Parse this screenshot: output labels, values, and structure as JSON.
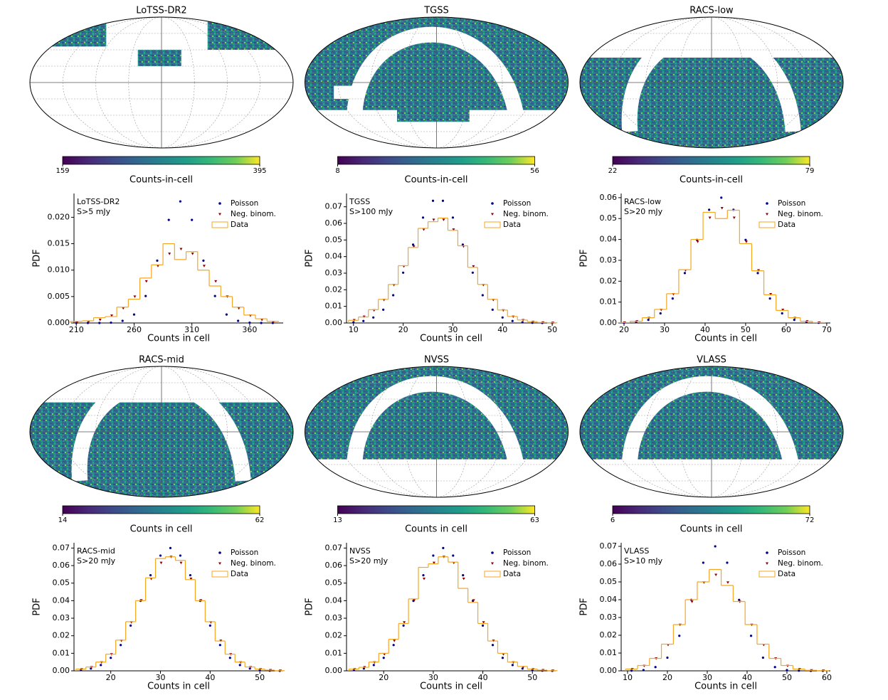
{
  "chart_data": [
    {
      "type": "map",
      "title": "LoTSS-DR2",
      "colorbar_label": "Counts-in-cell",
      "clim": [
        159,
        395
      ],
      "cticks": [
        159,
        395
      ]
    },
    {
      "type": "map",
      "title": "TGSS",
      "colorbar_label": "Counts-in-cell",
      "clim": [
        8,
        56
      ],
      "cticks": [
        8,
        56
      ]
    },
    {
      "type": "map",
      "title": "RACS-low",
      "colorbar_label": "Counts-in-cell",
      "clim": [
        22,
        79
      ],
      "cticks": [
        22,
        79
      ]
    },
    {
      "type": "pdf",
      "annotation": [
        "LoTSS-DR2",
        "S>5 mJy"
      ],
      "xlabel": "Counts in cell",
      "ylabel": "PDF",
      "x": [
        210,
        220,
        230,
        240,
        250,
        260,
        270,
        280,
        290,
        300,
        310,
        320,
        330,
        340,
        350,
        360,
        370,
        380
      ],
      "series": [
        {
          "name": "Poisson",
          "color": "#00008b",
          "values": [
            0,
            0,
            0,
            6e-05,
            0.0004,
            0.0016,
            0.0051,
            0.0118,
            0.0195,
            0.023,
            0.0195,
            0.0118,
            0.0051,
            0.0016,
            0.0004,
            6e-05,
            0,
            0
          ]
        },
        {
          "name": "Neg. binom.",
          "color": "#8b0000",
          "values": [
            8e-05,
            0.0002,
            0.0006,
            0.0014,
            0.0028,
            0.005,
            0.0079,
            0.0108,
            0.0131,
            0.014,
            0.0131,
            0.0108,
            0.0079,
            0.005,
            0.0028,
            0.0014,
            0.0006,
            0.0002
          ]
        },
        {
          "name": "Data",
          "color": "#f5a623",
          "values": [
            0.0003,
            0.0004,
            0.001,
            0.0012,
            0.003,
            0.0045,
            0.0085,
            0.011,
            0.015,
            0.012,
            0.0135,
            0.01,
            0.007,
            0.005,
            0.003,
            0.0015,
            0.0008,
            0.0003
          ]
        }
      ],
      "xlim": [
        208,
        389
      ],
      "ylim": [
        0,
        0.0245
      ],
      "xticks": [
        210,
        260,
        310,
        360
      ],
      "yticks": [
        {
          "value": 0,
          "label": "0.000"
        },
        {
          "value": 0.005,
          "label": "0.005"
        },
        {
          "value": 0.01,
          "label": "0.010"
        },
        {
          "value": 0.015,
          "label": "0.015"
        },
        {
          "value": 0.02,
          "label": "0.020"
        }
      ]
    },
    {
      "type": "pdf",
      "annotation": [
        "TGSS",
        "S>100 mJy"
      ],
      "xlabel": "Counts in cell",
      "ylabel": "PDF",
      "x": [
        10,
        12,
        14,
        16,
        18,
        20,
        22,
        24,
        26,
        28,
        30,
        32,
        34,
        36,
        38,
        40,
        42,
        44,
        46,
        48,
        50
      ],
      "series": [
        {
          "name": "Poisson",
          "color": "#00008b",
          "values": [
            0.0004,
            0.0012,
            0.0033,
            0.008,
            0.0167,
            0.0303,
            0.0472,
            0.0635,
            0.0736,
            0.0736,
            0.0635,
            0.0472,
            0.0303,
            0.0167,
            0.008,
            0.0033,
            0.0012,
            0.0004,
            0.0001,
            0,
            0
          ]
        },
        {
          "name": "Neg. binom.",
          "color": "#8b0000",
          "values": [
            0.0017,
            0.0038,
            0.0076,
            0.0139,
            0.0229,
            0.0341,
            0.0461,
            0.0563,
            0.0622,
            0.0622,
            0.0563,
            0.0461,
            0.0341,
            0.0229,
            0.0139,
            0.0076,
            0.0038,
            0.0017,
            0.0007,
            0.0003,
            0.0001
          ]
        },
        {
          "name": "Data",
          "color": "#f5a623",
          "values": [
            0.0016,
            0.0036,
            0.008,
            0.0142,
            0.0232,
            0.0345,
            0.0455,
            0.057,
            0.061,
            0.0632,
            0.0558,
            0.0465,
            0.0335,
            0.0232,
            0.0142,
            0.0078,
            0.0039,
            0.0018,
            0.0008,
            0.0003,
            0.0001
          ]
        }
      ],
      "xlim": [
        8.6,
        50.7
      ],
      "ylim": [
        0,
        0.078
      ],
      "xticks": [
        10,
        20,
        30,
        40,
        50
      ],
      "yticks": [
        {
          "value": 0,
          "label": "0.00"
        },
        {
          "value": 0.01,
          "label": "0.01"
        },
        {
          "value": 0.02,
          "label": "0.02"
        },
        {
          "value": 0.03,
          "label": "0.03"
        },
        {
          "value": 0.04,
          "label": "0.04"
        },
        {
          "value": 0.05,
          "label": "0.05"
        },
        {
          "value": 0.06,
          "label": "0.06"
        },
        {
          "value": 0.07,
          "label": "0.07"
        }
      ]
    },
    {
      "type": "pdf",
      "annotation": [
        "RACS-low",
        "S>20 mJy"
      ],
      "xlabel": "Counts in cell",
      "ylabel": "PDF",
      "x": [
        20,
        23,
        26,
        29,
        32,
        35,
        38,
        41,
        44,
        47,
        50,
        53,
        56,
        59,
        62,
        65,
        68
      ],
      "series": [
        {
          "name": "Poisson",
          "color": "#00008b",
          "values": [
            0.0001,
            0.0004,
            0.0015,
            0.0046,
            0.0117,
            0.0239,
            0.0398,
            0.0542,
            0.06,
            0.0542,
            0.0398,
            0.0239,
            0.0117,
            0.0046,
            0.0015,
            0.0004,
            0.0001
          ]
        },
        {
          "name": "Neg. binom.",
          "color": "#8b0000",
          "values": [
            0.0002,
            0.0008,
            0.0024,
            0.0063,
            0.0138,
            0.0252,
            0.0389,
            0.0504,
            0.055,
            0.0504,
            0.0389,
            0.0252,
            0.0138,
            0.0063,
            0.0024,
            0.0008,
            0.0002
          ]
        },
        {
          "name": "Data",
          "color": "#f5a623",
          "values": [
            0.0002,
            0.0008,
            0.0025,
            0.0065,
            0.014,
            0.0255,
            0.04,
            0.053,
            0.05,
            0.054,
            0.038,
            0.025,
            0.0135,
            0.006,
            0.0025,
            0.0008,
            0.0002
          ]
        }
      ],
      "xlim": [
        19.3,
        70.9
      ],
      "ylim": [
        0,
        0.062
      ],
      "xticks": [
        20,
        30,
        40,
        50,
        60,
        70
      ],
      "yticks": [
        {
          "value": 0,
          "label": "0.00"
        },
        {
          "value": 0.01,
          "label": "0.01"
        },
        {
          "value": 0.02,
          "label": "0.02"
        },
        {
          "value": 0.03,
          "label": "0.03"
        },
        {
          "value": 0.04,
          "label": "0.04"
        },
        {
          "value": 0.05,
          "label": "0.05"
        },
        {
          "value": 0.06,
          "label": "0.06"
        }
      ]
    },
    {
      "type": "map",
      "title": "RACS-mid",
      "colorbar_label": "Counts in cell",
      "clim": [
        14,
        62
      ],
      "cticks": [
        14,
        62
      ]
    },
    {
      "type": "map",
      "title": "NVSS",
      "colorbar_label": "Counts in cell",
      "clim": [
        13,
        63
      ],
      "cticks": [
        13,
        63
      ]
    },
    {
      "type": "map",
      "title": "VLASS",
      "colorbar_label": "Counts in cell",
      "clim": [
        6,
        72
      ],
      "cticks": [
        6,
        72
      ]
    },
    {
      "type": "pdf",
      "annotation": [
        "RACS-mid",
        "S>20 mJy"
      ],
      "xlabel": "Counts in cell",
      "ylabel": "PDF",
      "x": [
        14,
        16,
        18,
        20,
        22,
        24,
        26,
        28,
        30,
        32,
        34,
        36,
        38,
        40,
        42,
        44,
        46,
        48,
        50,
        52,
        54
      ],
      "series": [
        {
          "name": "Poisson",
          "color": "#00008b",
          "values": [
            0.0004,
            0.0013,
            0.0033,
            0.0074,
            0.0147,
            0.0258,
            0.0399,
            0.0545,
            0.0657,
            0.07,
            0.0657,
            0.0545,
            0.0399,
            0.0258,
            0.0147,
            0.0074,
            0.0033,
            0.0013,
            0.0004,
            0.0001,
            0
          ]
        },
        {
          "name": "Neg. binom.",
          "color": "#8b0000",
          "values": [
            0.0009,
            0.0021,
            0.0048,
            0.0095,
            0.0172,
            0.0277,
            0.0402,
            0.0525,
            0.0616,
            0.065,
            0.0616,
            0.0525,
            0.0402,
            0.0277,
            0.0172,
            0.0095,
            0.0048,
            0.0021,
            0.0009,
            0.0004,
            0.0001
          ]
        },
        {
          "name": "Data",
          "color": "#f5a623",
          "values": [
            0.001,
            0.0022,
            0.005,
            0.0095,
            0.0175,
            0.028,
            0.04,
            0.053,
            0.064,
            0.065,
            0.063,
            0.052,
            0.04,
            0.028,
            0.017,
            0.0095,
            0.005,
            0.0022,
            0.001,
            0.0004,
            0.0001
          ]
        }
      ],
      "xlim": [
        12.6,
        54.7
      ],
      "ylim": [
        0,
        0.073
      ],
      "xticks": [
        20,
        30,
        40,
        50
      ],
      "yticks": [
        {
          "value": 0,
          "label": "0.00"
        },
        {
          "value": 0.01,
          "label": "0.01"
        },
        {
          "value": 0.02,
          "label": "0.02"
        },
        {
          "value": 0.03,
          "label": "0.03"
        },
        {
          "value": 0.04,
          "label": "0.04"
        },
        {
          "value": 0.05,
          "label": "0.05"
        },
        {
          "value": 0.06,
          "label": "0.06"
        },
        {
          "value": 0.07,
          "label": "0.07"
        }
      ]
    },
    {
      "type": "pdf",
      "annotation": [
        "NVSS",
        "S>20 mJy"
      ],
      "xlabel": "Counts in cell",
      "ylabel": "PDF",
      "x": [
        14,
        16,
        18,
        20,
        22,
        24,
        26,
        28,
        30,
        32,
        34,
        36,
        38,
        40,
        42,
        44,
        46,
        48,
        50,
        52,
        54
      ],
      "series": [
        {
          "name": "Poisson",
          "color": "#00008b",
          "values": [
            0.0004,
            0.0013,
            0.0033,
            0.0074,
            0.0147,
            0.0258,
            0.0399,
            0.0545,
            0.0657,
            0.07,
            0.0657,
            0.0545,
            0.0399,
            0.0258,
            0.0147,
            0.0074,
            0.0033,
            0.0013,
            0.0004,
            0.0001,
            0
          ]
        },
        {
          "name": "Neg. binom.",
          "color": "#8b0000",
          "values": [
            0.0009,
            0.0021,
            0.0048,
            0.0095,
            0.0172,
            0.0277,
            0.0402,
            0.0525,
            0.0616,
            0.065,
            0.0616,
            0.0525,
            0.0402,
            0.0277,
            0.0172,
            0.0095,
            0.0048,
            0.0021,
            0.0009,
            0.0004,
            0.0001
          ]
        },
        {
          "name": "Data",
          "color": "#f5a623",
          "values": [
            0.001,
            0.002,
            0.005,
            0.01,
            0.018,
            0.027,
            0.041,
            0.059,
            0.061,
            0.065,
            0.062,
            0.047,
            0.039,
            0.027,
            0.017,
            0.01,
            0.005,
            0.0025,
            0.001,
            0.0004,
            0.0001
          ]
        }
      ],
      "xlim": [
        12.5,
        54.7
      ],
      "ylim": [
        0,
        0.073
      ],
      "xticks": [
        20,
        30,
        40,
        50
      ],
      "yticks": [
        {
          "value": 0,
          "label": "0.00"
        },
        {
          "value": 0.01,
          "label": "0.01"
        },
        {
          "value": 0.02,
          "label": "0.02"
        },
        {
          "value": 0.03,
          "label": "0.03"
        },
        {
          "value": 0.04,
          "label": "0.04"
        },
        {
          "value": 0.05,
          "label": "0.05"
        },
        {
          "value": 0.06,
          "label": "0.06"
        },
        {
          "value": 0.07,
          "label": "0.07"
        }
      ]
    },
    {
      "type": "pdf",
      "annotation": [
        "VLASS",
        "S>10 mJy"
      ],
      "xlabel": "Counts in cell",
      "ylabel": "PDF",
      "x": [
        11,
        14,
        17,
        20,
        23,
        26,
        29,
        32,
        35,
        38,
        41,
        44,
        47,
        50,
        53,
        56,
        59
      ],
      "series": [
        {
          "name": "Poisson",
          "color": "#00008b",
          "values": [
            0.0001,
            0.0004,
            0.0021,
            0.0074,
            0.0197,
            0.0399,
            0.0608,
            0.07,
            0.0608,
            0.0399,
            0.0197,
            0.0074,
            0.0021,
            0.0004,
            0.0001,
            0,
            0
          ]
        },
        {
          "name": "Neg. binom.",
          "color": "#8b0000",
          "values": [
            0.001,
            0.0028,
            0.007,
            0.0146,
            0.0259,
            0.0389,
            0.0497,
            0.054,
            0.0497,
            0.0389,
            0.0259,
            0.0146,
            0.007,
            0.0028,
            0.001,
            0.0003,
            0.0001
          ]
        },
        {
          "name": "Data",
          "color": "#f5a623",
          "values": [
            0.001,
            0.003,
            0.007,
            0.015,
            0.026,
            0.04,
            0.05,
            0.057,
            0.048,
            0.039,
            0.026,
            0.015,
            0.007,
            0.003,
            0.001,
            0.0003,
            0.0001
          ]
        }
      ],
      "xlim": [
        8.4,
        60.9
      ],
      "ylim": [
        0,
        0.072
      ],
      "xticks": [
        10,
        20,
        30,
        40,
        50,
        60
      ],
      "yticks": [
        {
          "value": 0,
          "label": "0.00"
        },
        {
          "value": 0.01,
          "label": "0.01"
        },
        {
          "value": 0.02,
          "label": "0.02"
        },
        {
          "value": 0.03,
          "label": "0.03"
        },
        {
          "value": 0.04,
          "label": "0.04"
        },
        {
          "value": 0.05,
          "label": "0.05"
        },
        {
          "value": 0.06,
          "label": "0.06"
        },
        {
          "value": 0.07,
          "label": "0.07"
        }
      ]
    }
  ]
}
